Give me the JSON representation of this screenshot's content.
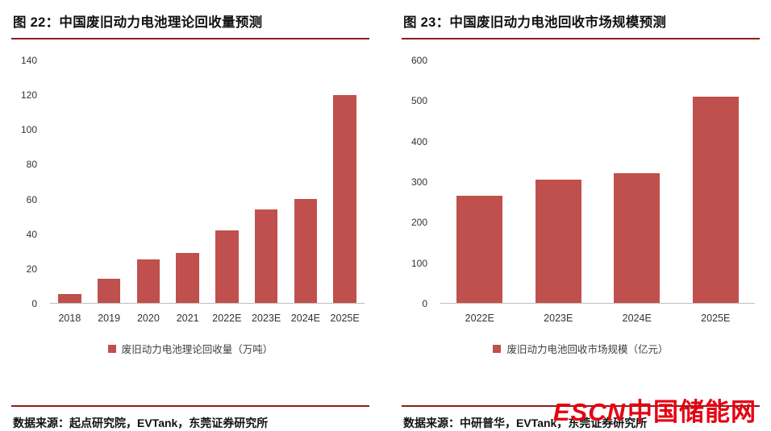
{
  "colors": {
    "bar": "#c0504d",
    "rule": "#8e1d18",
    "watermark": "#e60012",
    "axis_line": "#bfbfbf"
  },
  "watermark": {
    "prefix": "ESCN",
    "name": "中国储能网"
  },
  "chart_data": [
    {
      "type": "bar",
      "title": "图 22：中国废旧动力电池理论回收量预测",
      "categories": [
        "2018",
        "2019",
        "2020",
        "2021",
        "2022E",
        "2023E",
        "2024E",
        "2025E"
      ],
      "values": [
        5,
        14,
        25,
        29,
        42,
        54,
        60,
        120
      ],
      "legend": "废旧动力电池理论回收量（万吨）",
      "source": "数据来源：起点研究院，EVTank，东莞证券研究所",
      "xlabel": "",
      "ylabel": "",
      "ylim": [
        0,
        140
      ],
      "yticks": [
        0,
        20,
        40,
        60,
        80,
        100,
        120,
        140
      ],
      "grid": false,
      "legend_position": "bottom",
      "bar_color": "#c0504d"
    },
    {
      "type": "bar",
      "title": "图 23：中国废旧动力电池回收市场规模预测",
      "categories": [
        "2022E",
        "2023E",
        "2024E",
        "2025E"
      ],
      "values": [
        265,
        305,
        320,
        510
      ],
      "legend": "废旧动力电池回收市场规模（亿元）",
      "source": "数据来源：中研普华，EVTank，东莞证券研究所",
      "xlabel": "",
      "ylabel": "",
      "ylim": [
        0,
        600
      ],
      "yticks": [
        0,
        100,
        200,
        300,
        400,
        500,
        600
      ],
      "grid": false,
      "legend_position": "bottom",
      "bar_color": "#c0504d"
    }
  ]
}
